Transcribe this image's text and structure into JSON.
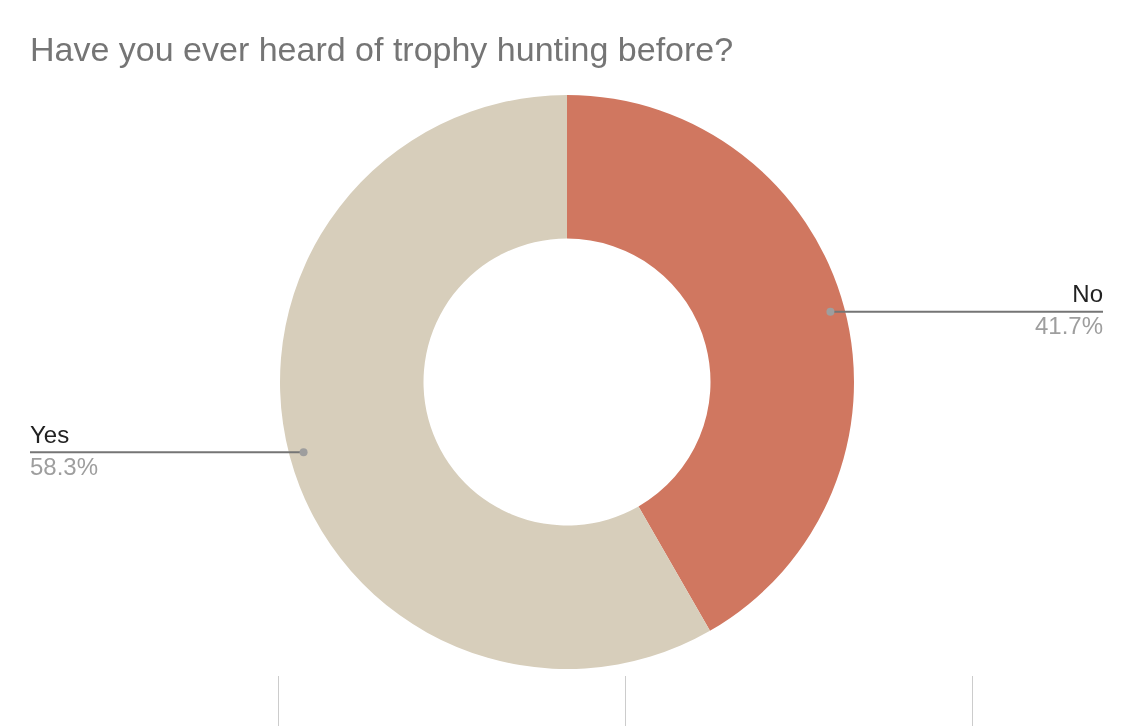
{
  "chart_data": {
    "type": "donut",
    "title": "Have you ever heard of trophy hunting before?",
    "categories": [
      "No",
      "Yes"
    ],
    "values": [
      41.7,
      58.3
    ],
    "colors": [
      "#d07760",
      "#d7cebb"
    ],
    "value_labels": [
      "41.7%",
      "58.3%"
    ],
    "legend": false
  }
}
